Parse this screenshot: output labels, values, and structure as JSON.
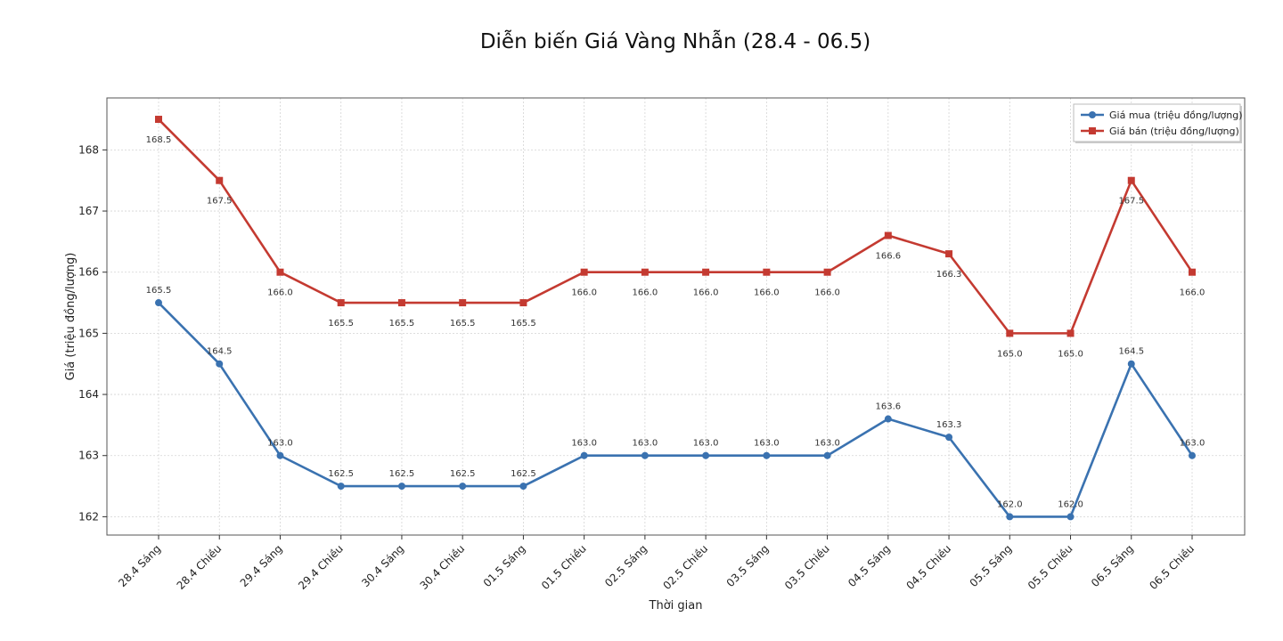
{
  "chart_data": {
    "type": "line",
    "title": "Diễn biến Giá Vàng Nhẫn (28.4 - 06.5)",
    "xlabel": "Thời gian",
    "ylabel": "Giá (triệu đồng/lượng)",
    "categories": [
      "28.4 Sáng",
      "28.4 Chiều",
      "29.4 Sáng",
      "29.4 Chiều",
      "30.4 Sáng",
      "30.4 Chiều",
      "01.5 Sáng",
      "01.5 Chiều",
      "02.5 Sáng",
      "02.5 Chiều",
      "03.5 Sáng",
      "03.5 Chiều",
      "04.5 Sáng",
      "04.5 Chiều",
      "05.5 Sáng",
      "05.5 Chiều",
      "06.5 Sáng",
      "06.5 Chiều"
    ],
    "ylim": [
      161.7,
      168.85
    ],
    "yticks": [
      162,
      163,
      164,
      165,
      166,
      167,
      168
    ],
    "grid": true,
    "legend_position": "top-right",
    "series": [
      {
        "name": "Giá mua (triệu đồng/lượng)",
        "color": "#3a72b0",
        "marker": "circle",
        "label_position": "above",
        "values": [
          165.5,
          164.5,
          163.0,
          162.5,
          162.5,
          162.5,
          162.5,
          163.0,
          163.0,
          163.0,
          163.0,
          163.0,
          163.6,
          163.3,
          162.0,
          162.0,
          164.5,
          163.0
        ]
      },
      {
        "name": "Giá bán (triệu đồng/lượng)",
        "color": "#c43a31",
        "marker": "square",
        "label_position": "below",
        "values": [
          168.5,
          167.5,
          166.0,
          165.5,
          165.5,
          165.5,
          165.5,
          166.0,
          166.0,
          166.0,
          166.0,
          166.0,
          166.6,
          166.3,
          165.0,
          165.0,
          167.5,
          166.0
        ]
      }
    ]
  }
}
